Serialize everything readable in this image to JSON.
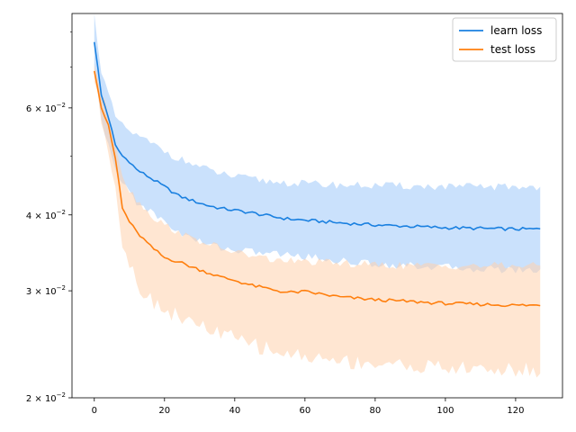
{
  "chart_data": {
    "type": "line",
    "title": "",
    "xlabel": "",
    "ylabel": "",
    "yscale": "log",
    "xlim": [
      -6.35,
      133.35
    ],
    "ylim": [
      0.02,
      0.0858
    ],
    "grid": false,
    "legend_placement": "top-right",
    "x_ticks": [
      0,
      20,
      40,
      60,
      80,
      100,
      120
    ],
    "x_tick_labels": [
      "0",
      "20",
      "40",
      "60",
      "80",
      "100",
      "120"
    ],
    "y_ticks": [
      0.02,
      0.03,
      0.04,
      0.06
    ],
    "y_tick_labels": [
      {
        "base": "2 × 10",
        "exp": "−2"
      },
      {
        "base": "3 × 10",
        "exp": "−2"
      },
      {
        "base": "4 × 10",
        "exp": "−2"
      },
      {
        "base": "6 × 10",
        "exp": "−2"
      }
    ],
    "x_anchor": [
      0,
      2,
      4,
      6,
      8,
      10,
      12,
      16,
      20,
      24,
      28,
      32,
      36,
      40,
      45,
      50,
      55,
      60,
      70,
      80,
      90,
      100,
      110,
      120,
      127
    ],
    "series": [
      {
        "name": "learn loss",
        "color": "#1f77b4",
        "line_color": "#1a80e0",
        "band_color": "#a6cdfa",
        "mean": [
          0.077,
          0.063,
          0.058,
          0.052,
          0.05,
          0.049,
          0.0475,
          0.046,
          0.0445,
          0.043,
          0.0422,
          0.0415,
          0.041,
          0.0407,
          0.0403,
          0.0398,
          0.0394,
          0.0392,
          0.0388,
          0.0385,
          0.0383,
          0.0381,
          0.038,
          0.0379,
          0.0379
        ],
        "upper": [
          0.085,
          0.069,
          0.063,
          0.058,
          0.056,
          0.055,
          0.054,
          0.0525,
          0.051,
          0.0495,
          0.0485,
          0.0475,
          0.0468,
          0.0462,
          0.0458,
          0.0454,
          0.0452,
          0.045,
          0.0448,
          0.0447,
          0.0446,
          0.0445,
          0.0445,
          0.0445,
          0.0445
        ],
        "lower": [
          0.069,
          0.057,
          0.0525,
          0.047,
          0.045,
          0.044,
          0.042,
          0.0405,
          0.039,
          0.0375,
          0.0365,
          0.0358,
          0.0354,
          0.035,
          0.0348,
          0.0346,
          0.0344,
          0.0342,
          0.0336,
          0.0332,
          0.033,
          0.0328,
          0.0326,
          0.0325,
          0.0324
        ]
      },
      {
        "name": "test loss",
        "color": "#ff7f0e",
        "line_color": "#ff7f0e",
        "band_color": "#ffd2ad",
        "mean": [
          0.069,
          0.06,
          0.056,
          0.0495,
          0.041,
          0.039,
          0.0375,
          0.0355,
          0.034,
          0.0335,
          0.0328,
          0.0322,
          0.0316,
          0.0312,
          0.0306,
          0.0302,
          0.0298,
          0.0299,
          0.0293,
          0.029,
          0.0288,
          0.0286,
          0.0285,
          0.0284,
          0.0284
        ],
        "upper": [
          0.071,
          0.063,
          0.059,
          0.053,
          0.0465,
          0.044,
          0.0425,
          0.04,
          0.0385,
          0.0375,
          0.0365,
          0.036,
          0.0352,
          0.0348,
          0.0342,
          0.0338,
          0.0336,
          0.0335,
          0.0333,
          0.0331,
          0.033,
          0.033,
          0.033,
          0.033,
          0.033
        ],
        "lower": [
          0.067,
          0.057,
          0.052,
          0.0445,
          0.036,
          0.0335,
          0.031,
          0.029,
          0.028,
          0.0272,
          0.0265,
          0.026,
          0.0255,
          0.025,
          0.0245,
          0.024,
          0.0236,
          0.0234,
          0.023,
          0.0228,
          0.0226,
          0.0224,
          0.0223,
          0.0222,
          0.0222
        ]
      }
    ]
  }
}
